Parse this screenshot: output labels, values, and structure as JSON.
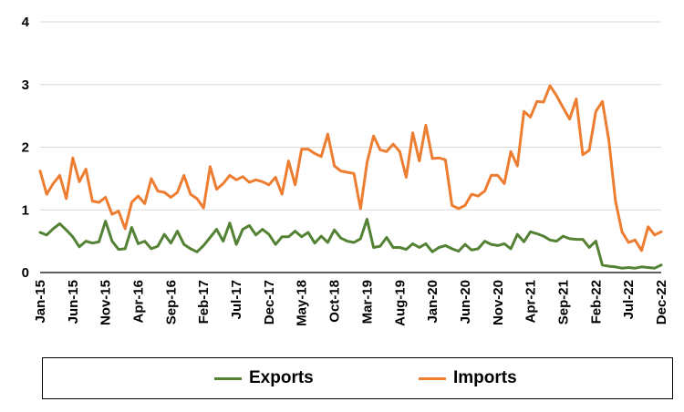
{
  "chart_data": {
    "type": "line",
    "title": "",
    "xlabel": "",
    "ylabel": "",
    "ylim": [
      0,
      4
    ],
    "yticks": [
      "0",
      "1",
      "2",
      "3",
      "4"
    ],
    "grid": "horizontal",
    "legend_position": "bottom",
    "x_tick_labels": [
      "Jan-15",
      "Jun-15",
      "Nov-15",
      "Apr-16",
      "Sep-16",
      "Feb-17",
      "Jul-17",
      "Dec-17",
      "May-18",
      "Oct-18",
      "Mar-19",
      "Aug-19",
      "Jan-20",
      "Jun-20",
      "Nov-20",
      "Apr-21",
      "Sep-21",
      "Feb-22",
      "Jul-22",
      "Dec-22"
    ],
    "x_start": "Jan-15",
    "x_end": "Dec-22",
    "series": [
      {
        "name": "Exports",
        "color": "#548235",
        "values": [
          0.64,
          0.6,
          0.7,
          0.78,
          0.68,
          0.57,
          0.41,
          0.5,
          0.47,
          0.49,
          0.82,
          0.5,
          0.37,
          0.38,
          0.72,
          0.46,
          0.5,
          0.38,
          0.42,
          0.61,
          0.47,
          0.66,
          0.45,
          0.38,
          0.33,
          0.43,
          0.56,
          0.69,
          0.5,
          0.79,
          0.45,
          0.69,
          0.75,
          0.6,
          0.69,
          0.61,
          0.45,
          0.57,
          0.57,
          0.66,
          0.57,
          0.64,
          0.47,
          0.58,
          0.48,
          0.68,
          0.55,
          0.5,
          0.48,
          0.54,
          0.85,
          0.4,
          0.42,
          0.56,
          0.4,
          0.4,
          0.37,
          0.46,
          0.4,
          0.46,
          0.33,
          0.4,
          0.43,
          0.38,
          0.34,
          0.45,
          0.36,
          0.38,
          0.5,
          0.45,
          0.43,
          0.46,
          0.38,
          0.61,
          0.49,
          0.65,
          0.62,
          0.58,
          0.52,
          0.5,
          0.58,
          0.54,
          0.53,
          0.53,
          0.4,
          0.5,
          0.12,
          0.1,
          0.09,
          0.07,
          0.08,
          0.07,
          0.09,
          0.08,
          0.07,
          0.12
        ]
      },
      {
        "name": "Imports",
        "color": "#ED7D31",
        "values": [
          1.62,
          1.25,
          1.42,
          1.55,
          1.18,
          1.83,
          1.45,
          1.65,
          1.14,
          1.12,
          1.2,
          0.93,
          0.98,
          0.7,
          1.12,
          1.22,
          1.1,
          1.5,
          1.3,
          1.28,
          1.2,
          1.28,
          1.55,
          1.25,
          1.18,
          1.03,
          1.69,
          1.33,
          1.42,
          1.55,
          1.48,
          1.53,
          1.44,
          1.48,
          1.45,
          1.4,
          1.52,
          1.25,
          1.78,
          1.4,
          1.97,
          1.97,
          1.9,
          1.85,
          2.21,
          1.7,
          1.62,
          1.6,
          1.58,
          1.02,
          1.75,
          2.18,
          1.96,
          1.93,
          2.05,
          1.93,
          1.52,
          2.23,
          1.78,
          2.35,
          1.82,
          1.83,
          1.8,
          1.07,
          1.02,
          1.07,
          1.25,
          1.22,
          1.3,
          1.55,
          1.55,
          1.42,
          1.93,
          1.7,
          2.57,
          2.48,
          2.73,
          2.72,
          2.98,
          2.82,
          2.63,
          2.45,
          2.77,
          1.88,
          1.95,
          2.57,
          2.73,
          2.1,
          1.15,
          0.65,
          0.48,
          0.52,
          0.35,
          0.73,
          0.6,
          0.65
        ]
      }
    ]
  }
}
